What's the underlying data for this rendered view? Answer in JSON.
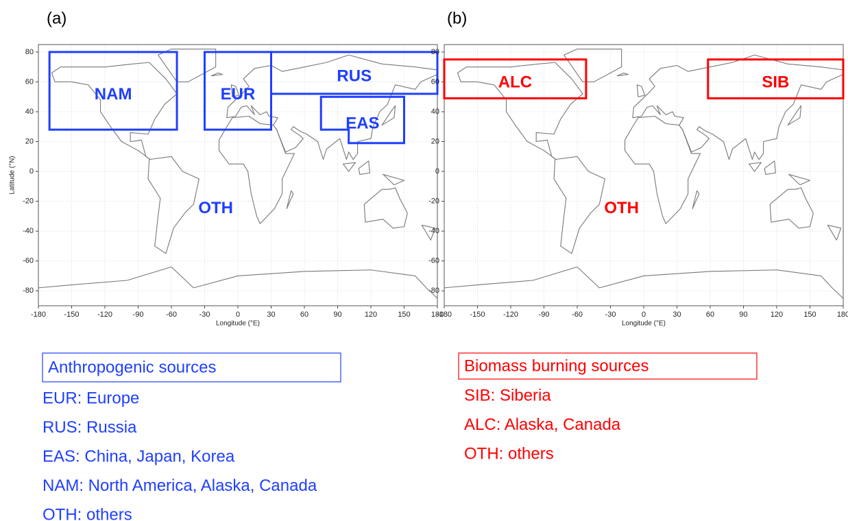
{
  "panels": [
    {
      "label": "(a)",
      "xlabel": "Longitude (°E)",
      "ylabel": "Latitude (°N)",
      "xlim": [
        -180,
        180
      ],
      "ylim": [
        -90,
        85
      ],
      "xticks": [
        -180,
        -150,
        -120,
        -90,
        -60,
        -30,
        0,
        30,
        60,
        90,
        120,
        150,
        180
      ],
      "yticks": [
        -80,
        -60,
        -40,
        -20,
        0,
        20,
        40,
        60,
        80
      ],
      "color": "#1f3fff",
      "other": "OTH",
      "regions": [
        {
          "name": "NAM",
          "polygon": [
            [
              -170,
              80
            ],
            [
              -55,
              80
            ],
            [
              -55,
              28
            ],
            [
              -170,
              28
            ]
          ]
        },
        {
          "name": "EUR",
          "polygon": [
            [
              -30,
              80
            ],
            [
              30,
              80
            ],
            [
              30,
              28
            ],
            [
              -30,
              28
            ]
          ]
        },
        {
          "name": "RUS",
          "polygon": [
            [
              30,
              80
            ],
            [
              180,
              80
            ],
            [
              180,
              52
            ],
            [
              30,
              52
            ]
          ]
        },
        {
          "name": "EAS",
          "polygon": [
            [
              75,
              50
            ],
            [
              150,
              50
            ],
            [
              150,
              19
            ],
            [
              100,
              19
            ],
            [
              100,
              28
            ],
            [
              75,
              28
            ]
          ]
        }
      ],
      "legend": {
        "title": "Anthropogenic sources",
        "items": [
          "EUR: Europe",
          "RUS: Russia",
          "EAS: China, Japan, Korea",
          "NAM: North America, Alaska, Canada",
          "OTH: others"
        ]
      }
    },
    {
      "label": "(b)",
      "xlabel": "Longitude (°E)",
      "ylabel": "Latitude (°N)",
      "xlim": [
        -180,
        180
      ],
      "ylim": [
        -90,
        85
      ],
      "xticks": [
        -180,
        -150,
        -120,
        -90,
        -60,
        -30,
        0,
        30,
        60,
        90,
        120,
        150,
        180
      ],
      "yticks": [
        -80,
        -60,
        -40,
        -20,
        0,
        20,
        40,
        60,
        80
      ],
      "color": "#ff0000",
      "other": "OTH",
      "regions": [
        {
          "name": "ALC",
          "polygon": [
            [
              -180,
              75
            ],
            [
              -52,
              75
            ],
            [
              -52,
              49
            ],
            [
              -180,
              49
            ]
          ]
        },
        {
          "name": "SIB",
          "polygon": [
            [
              58,
              75
            ],
            [
              180,
              75
            ],
            [
              180,
              49
            ],
            [
              58,
              49
            ]
          ]
        }
      ],
      "legend": {
        "title": "Biomass burning sources",
        "items": [
          "SIB: Siberia",
          "ALC: Alaska, Canada",
          "OTH: others"
        ]
      }
    }
  ]
}
